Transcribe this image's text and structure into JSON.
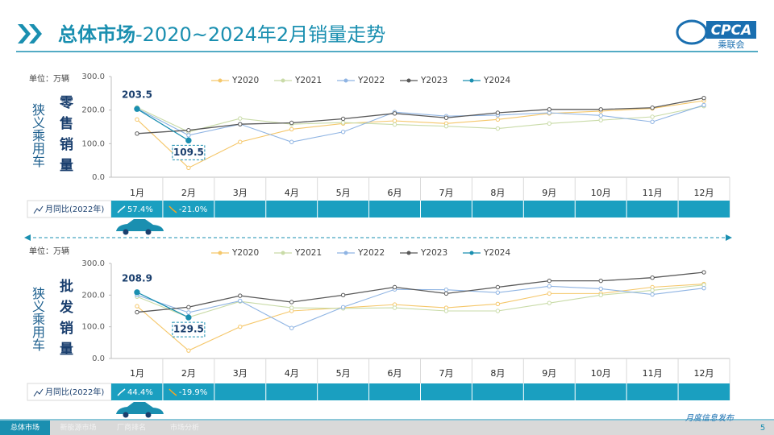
{
  "header": {
    "title_main": "总体市场",
    "title_rest": "-2020~2024年2月销量走势",
    "logo_en": "CPCA",
    "logo_cn": "乘联会"
  },
  "panels": [
    {
      "side_label": "狭义乘用车",
      "metric_label": "零售销量",
      "unit": "单位：万辆",
      "yoy_label": "月同比(2022年)",
      "yoy_values": [
        "57.4%",
        "-21.0%"
      ]
    },
    {
      "side_label": "狭义乘用车",
      "metric_label": "批发销量",
      "unit": "单位：万辆",
      "yoy_label": "月同比(2022年)",
      "yoy_values": [
        "44.4%",
        "-19.9%"
      ]
    }
  ],
  "chart_data": [
    {
      "type": "line",
      "categories": [
        "1月",
        "2月",
        "3月",
        "4月",
        "5月",
        "6月",
        "7月",
        "8月",
        "9月",
        "10月",
        "11月",
        "12月"
      ],
      "ylim": [
        0,
        300
      ],
      "yticks": [
        {
          "value": 0,
          "label": "0.0"
        },
        {
          "value": 100,
          "label": "100.0"
        },
        {
          "value": 200,
          "label": "200.0"
        },
        {
          "value": 300,
          "label": "300.0"
        }
      ],
      "series": [
        {
          "name": "Y2020",
          "color": "#f5c76a",
          "values": [
            172,
            28,
            105,
            143,
            160,
            168,
            160,
            172,
            190,
            197,
            205,
            228
          ]
        },
        {
          "name": "Y2021",
          "color": "#c9dba8",
          "values": [
            208,
            135,
            175,
            158,
            163,
            157,
            152,
            145,
            160,
            170,
            180,
            212
          ]
        },
        {
          "name": "Y2022",
          "color": "#8fb4e3",
          "values": [
            205,
            125,
            158,
            105,
            135,
            194,
            182,
            185,
            192,
            184,
            165,
            215
          ]
        },
        {
          "name": "Y2023",
          "color": "#595959",
          "values": [
            130,
            140,
            158,
            162,
            174,
            190,
            177,
            192,
            202,
            202,
            207,
            236
          ]
        },
        {
          "name": "Y2024",
          "color": "#1a8fb0",
          "show_labels": true,
          "values": [
            203.5,
            109.5,
            null,
            null,
            null,
            null,
            null,
            null,
            null,
            null,
            null,
            null
          ]
        }
      ]
    },
    {
      "type": "line",
      "categories": [
        "1月",
        "2月",
        "3月",
        "4月",
        "5月",
        "6月",
        "7月",
        "8月",
        "9月",
        "10月",
        "11月",
        "12月"
      ],
      "ylim": [
        0,
        300
      ],
      "yticks": [
        {
          "value": 0,
          "label": "0.0"
        },
        {
          "value": 100,
          "label": "100.0"
        },
        {
          "value": 200,
          "label": "200.0"
        },
        {
          "value": 300,
          "label": "300.0"
        }
      ],
      "series": [
        {
          "name": "Y2020",
          "color": "#f5c76a",
          "values": [
            165,
            25,
            100,
            150,
            160,
            170,
            160,
            172,
            205,
            205,
            225,
            235
          ]
        },
        {
          "name": "Y2021",
          "color": "#c9dba8",
          "values": [
            195,
            130,
            180,
            160,
            158,
            160,
            150,
            150,
            175,
            200,
            215,
            232
          ]
        },
        {
          "name": "Y2022",
          "color": "#8fb4e3",
          "values": [
            200,
            145,
            182,
            96,
            162,
            218,
            217,
            208,
            228,
            220,
            202,
            222
          ]
        },
        {
          "name": "Y2023",
          "color": "#595959",
          "values": [
            146,
            162,
            198,
            178,
            200,
            225,
            205,
            225,
            245,
            245,
            255,
            272
          ]
        },
        {
          "name": "Y2024",
          "color": "#1a8fb0",
          "show_labels": true,
          "values": [
            208.9,
            129.5,
            null,
            null,
            null,
            null,
            null,
            null,
            null,
            null,
            null,
            null
          ]
        }
      ]
    }
  ],
  "footer": {
    "tabs": [
      "总体市场",
      "新能源市场",
      "厂商排名",
      "市场分析"
    ],
    "note": "月度信息发布",
    "page": "5"
  }
}
